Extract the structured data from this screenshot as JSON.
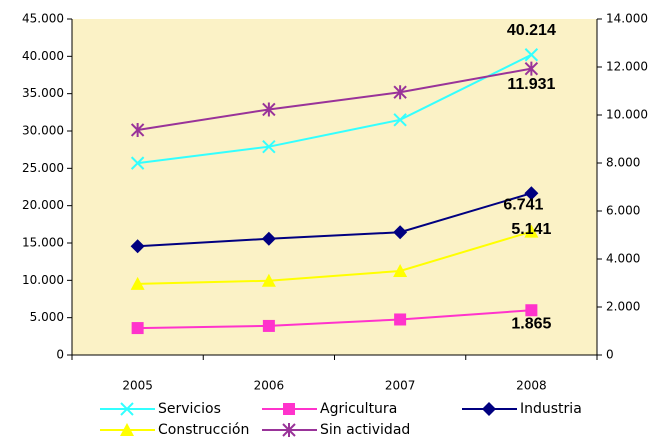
{
  "chart_data": {
    "type": "line",
    "categories": [
      "2005",
      "2006",
      "2007",
      "2008"
    ],
    "ylim": [
      0,
      45000
    ],
    "yticks": [
      0,
      {
        "value": 5000,
        "label": "5.000"
      },
      {
        "value": 10000,
        "label": "10.000"
      },
      {
        "value": 15000,
        "label": "15.000"
      },
      {
        "value": 20000,
        "label": "20.000"
      },
      {
        "value": 25000,
        "label": "25.000"
      },
      {
        "value": 30000,
        "label": "30.000"
      },
      {
        "value": 35000,
        "label": "35.000"
      },
      {
        "value": 40000,
        "label": "40.000"
      },
      {
        "value": 45000,
        "label": "45.000"
      }
    ],
    "y2lim": [
      0,
      14000
    ],
    "y2ticks": [
      0,
      {
        "value": 2000,
        "label": "2.000"
      },
      {
        "value": 4000,
        "label": "4.000"
      },
      {
        "value": 6000,
        "label": "6.000"
      },
      {
        "value": 8000,
        "label": "8.000"
      },
      {
        "value": 10000,
        "label": "10.000"
      },
      {
        "value": 12000,
        "label": "12.000"
      },
      {
        "value": 14000,
        "label": "14.000"
      }
    ],
    "series": [
      {
        "name": "Servicios",
        "color": "#33ffff",
        "marker": "x",
        "values": [
          25700,
          27900,
          31500,
          40214
        ],
        "value_labels": [
          null,
          null,
          null,
          "40.214"
        ]
      },
      {
        "name": "Agricultura",
        "color": "#ff33cc",
        "marker": "square",
        "axis": "y2",
        "values": [
          1122,
          1211,
          1480,
          1865
        ],
        "value_labels": [
          null,
          null,
          null,
          "1.865"
        ]
      },
      {
        "name": "Industria",
        "color": "#000080",
        "marker": "diamond",
        "axis": "y2",
        "values": [
          4531,
          4845,
          5114,
          6741
        ],
        "value_labels": [
          null,
          null,
          null,
          "6.741"
        ]
      },
      {
        "name": "Construcción",
        "color": "#ffff00",
        "marker": "triangle",
        "axis": "y2",
        "values": [
          2961,
          3095,
          3500,
          5141
        ],
        "value_labels": [
          null,
          null,
          null,
          "5.141"
        ]
      },
      {
        "name": "Sin actividad",
        "color": "#993399",
        "marker": "star",
        "axis": "y2",
        "values": [
          9377,
          10230,
          10950,
          11931
        ],
        "value_labels": [
          null,
          null,
          null,
          "11.931"
        ]
      }
    ]
  }
}
